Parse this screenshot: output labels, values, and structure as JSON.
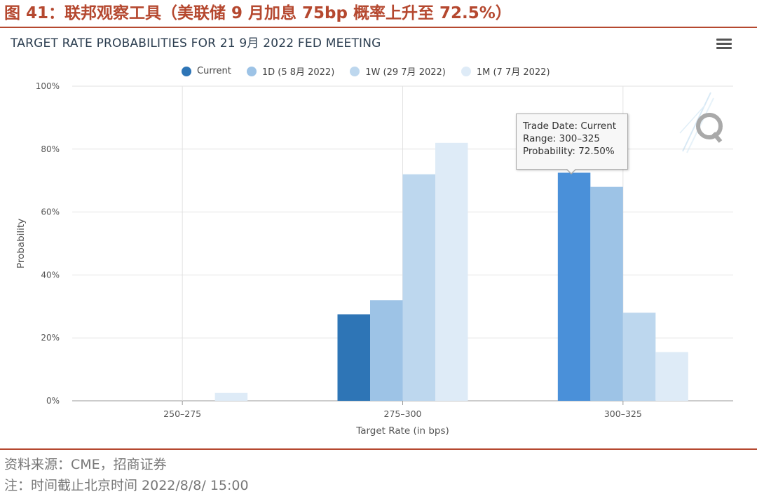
{
  "figure_title": "图 41：联邦观察工具（美联储 9 月加息 75bp 概率上升至 72.5%）",
  "chart_title": "TARGET RATE PROBABILITIES FOR 21 9月 2022 FED MEETING",
  "menu_icon": "hamburger-menu-icon",
  "legend": [
    {
      "label": "Current",
      "color": "#2e75b6"
    },
    {
      "label": "1D (5 8月 2022)",
      "color": "#9dc3e6"
    },
    {
      "label": "1W (29 7月 2022)",
      "color": "#bdd7ee"
    },
    {
      "label": "1M (7 7月 2022)",
      "color": "#deebf7"
    }
  ],
  "tooltip": {
    "trade_date": "Trade Date: Current",
    "range": "Range: 300–325",
    "probability": "Probability: 72.50%"
  },
  "chart_data": {
    "type": "bar",
    "categories": [
      "250–275",
      "275–300",
      "300–325"
    ],
    "series": [
      {
        "name": "Current",
        "values": [
          0,
          27.5,
          72.5
        ],
        "color": "#2e75b6"
      },
      {
        "name": "1D (5 8月 2022)",
        "values": [
          0,
          32,
          68
        ],
        "color": "#9dc3e6"
      },
      {
        "name": "1W (29 7月 2022)",
        "values": [
          0,
          72,
          28
        ],
        "color": "#bdd7ee"
      },
      {
        "name": "1M (7 7月 2022)",
        "values": [
          2.5,
          82,
          15.5
        ],
        "color": "#deebf7"
      }
    ],
    "highlight_color": "#4a90d9",
    "xlabel": "Target Rate (in bps)",
    "ylabel": "Probability",
    "ylim": [
      0,
      100
    ],
    "yticks": [
      "0%",
      "20%",
      "40%",
      "60%",
      "80%",
      "100%"
    ],
    "grid": true,
    "legend_position": "top"
  },
  "source_note": "资料来源：CME，招商证券",
  "time_note": "注：时间截止北京时间 2022/8/8/ 15:00"
}
